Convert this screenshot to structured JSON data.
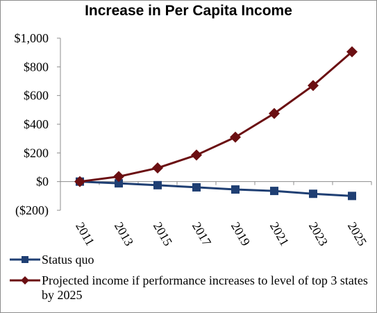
{
  "chart_data": {
    "type": "line",
    "title": "Increase in Per Capita Income",
    "categories": [
      "2011",
      "2013",
      "2015",
      "2017",
      "2019",
      "2021",
      "2023",
      "2025"
    ],
    "series": [
      {
        "name": "Status quo",
        "values": [
          0,
          -12,
          -25,
          -40,
          -55,
          -65,
          -85,
          -100
        ],
        "color": "#1f3f73",
        "marker": "square"
      },
      {
        "name": "Projected income if performance increases to level of top 3 states by 2025",
        "values": [
          0,
          35,
          95,
          185,
          310,
          475,
          670,
          905
        ],
        "color": "#6b0f12",
        "marker": "diamond"
      }
    ],
    "ylim": [
      -200,
      1000
    ],
    "ytick_values": [
      -200,
      0,
      200,
      400,
      600,
      800,
      1000
    ],
    "ytick_labels": [
      "($200)",
      "$0",
      "$200",
      "$400",
      "$600",
      "$800",
      "$1,000"
    ],
    "grid": false,
    "legend_position": "bottom"
  }
}
